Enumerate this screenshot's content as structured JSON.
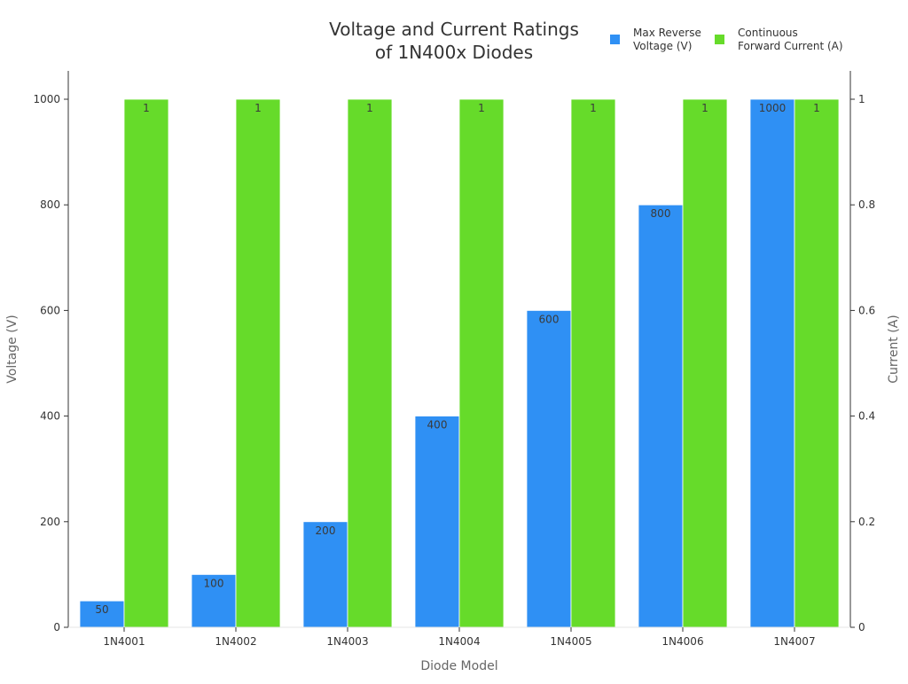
{
  "chart_data": {
    "type": "bar",
    "title": [
      "Voltage and Current Ratings",
      "of 1N400x Diodes"
    ],
    "xlabel": "Diode Model",
    "ylabel_left": "Voltage (V)",
    "ylabel_right": "Current (A)",
    "categories": [
      "1N4001",
      "1N4002",
      "1N4003",
      "1N4004",
      "1N4005",
      "1N4006",
      "1N4007"
    ],
    "ylim_left": [
      0,
      1000
    ],
    "ylim_right": [
      0,
      1
    ],
    "yticks_left": [
      "0",
      "200",
      "400",
      "600",
      "800",
      "1000"
    ],
    "yticks_right": [
      "0",
      "0.2",
      "0.4",
      "0.6",
      "0.8",
      "1"
    ],
    "grid": false,
    "legend_position": "top-right",
    "series": [
      {
        "name": [
          "Max Reverse",
          "Voltage (V)"
        ],
        "axis": "left",
        "color": "#2f90f4",
        "values": [
          50,
          100,
          200,
          400,
          600,
          800,
          1000
        ],
        "labels": [
          "50",
          "100",
          "200",
          "400",
          "600",
          "800",
          "1000"
        ]
      },
      {
        "name": [
          "Continuous",
          "Forward Current (A)"
        ],
        "axis": "right",
        "color": "#66db2a",
        "values": [
          1,
          1,
          1,
          1,
          1,
          1,
          1
        ],
        "labels": [
          "1",
          "1",
          "1",
          "1",
          "1",
          "1",
          "1"
        ]
      }
    ]
  }
}
